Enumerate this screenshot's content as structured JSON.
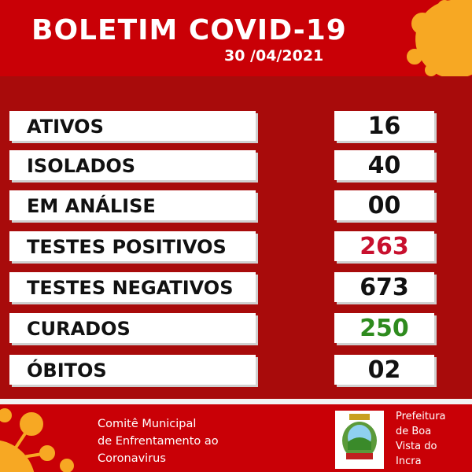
{
  "header": {
    "title": "BOLETIM COVID-19",
    "date": "30 /04/2021"
  },
  "rows": [
    {
      "label": "ATIVOS",
      "value": "16",
      "color": "#111111"
    },
    {
      "label": "ISOLADOS",
      "value": "40",
      "color": "#111111"
    },
    {
      "label": "EM ANÁLISE",
      "value": "00",
      "color": "#111111"
    },
    {
      "label": "TESTES POSITIVOS",
      "value": "263",
      "color": "#c8102e"
    },
    {
      "label": "TESTES NEGATIVOS",
      "value": "673",
      "color": "#111111"
    },
    {
      "label": "CURADOS",
      "value": "250",
      "color": "#2e8b1e"
    },
    {
      "label": "ÓBITOS",
      "value": "02",
      "color": "#111111"
    }
  ],
  "footer": {
    "committee_line1": "Comitê Municipal",
    "committee_line2": "de Enfrentamento ao",
    "committee_line3": "Coronavirus",
    "pref_line1": "Prefeitura",
    "pref_line2": "de Boa",
    "pref_line3": "Vista do",
    "pref_line4": "Incra"
  },
  "colors": {
    "header_red": "#c90006",
    "body_red": "#a80b0b",
    "virus_orange": "#f7a823"
  }
}
